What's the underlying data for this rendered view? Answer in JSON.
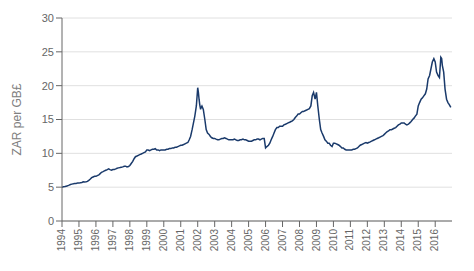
{
  "chart_data": {
    "type": "line",
    "ylabel": "ZAR per GB£",
    "color": "#1a3a6b",
    "grid": true,
    "xlim": [
      1994,
      2016.99
    ],
    "xticks": [
      1994,
      1995,
      1996,
      1997,
      1998,
      1999,
      2000,
      2001,
      2002,
      2003,
      2004,
      2005,
      2006,
      2007,
      2008,
      2009,
      2010,
      2011,
      2012,
      2013,
      2014,
      2015,
      2016
    ],
    "ylim": [
      0,
      30
    ],
    "yticks": [
      0,
      5,
      10,
      15,
      20,
      25,
      30
    ],
    "x": [
      1994.0,
      1994.08,
      1994.17,
      1994.25,
      1994.33,
      1994.42,
      1994.5,
      1994.58,
      1994.67,
      1994.75,
      1994.83,
      1994.92,
      1995.0,
      1995.08,
      1995.17,
      1995.25,
      1995.33,
      1995.42,
      1995.5,
      1995.58,
      1995.67,
      1995.75,
      1995.83,
      1995.92,
      1996.0,
      1996.08,
      1996.17,
      1996.25,
      1996.33,
      1996.42,
      1996.5,
      1996.58,
      1996.67,
      1996.75,
      1996.83,
      1996.92,
      1997.0,
      1997.08,
      1997.17,
      1997.25,
      1997.33,
      1997.42,
      1997.5,
      1997.58,
      1997.67,
      1997.75,
      1997.83,
      1997.92,
      1998.0,
      1998.08,
      1998.17,
      1998.25,
      1998.33,
      1998.42,
      1998.5,
      1998.58,
      1998.67,
      1998.75,
      1998.83,
      1998.92,
      1999.0,
      1999.08,
      1999.17,
      1999.25,
      1999.33,
      1999.42,
      1999.5,
      1999.58,
      1999.67,
      1999.75,
      1999.83,
      1999.92,
      2000.0,
      2000.08,
      2000.17,
      2000.25,
      2000.33,
      2000.42,
      2000.5,
      2000.58,
      2000.67,
      2000.75,
      2000.83,
      2000.92,
      2001.0,
      2001.08,
      2001.17,
      2001.25,
      2001.33,
      2001.42,
      2001.5,
      2001.58,
      2001.67,
      2001.75,
      2001.83,
      2001.92,
      2002.0,
      2002.04,
      2002.08,
      2002.12,
      2002.17,
      2002.21,
      2002.25,
      2002.33,
      2002.42,
      2002.5,
      2002.58,
      2002.67,
      2002.75,
      2002.83,
      2002.92,
      2003.0,
      2003.08,
      2003.17,
      2003.25,
      2003.33,
      2003.42,
      2003.5,
      2003.58,
      2003.67,
      2003.75,
      2003.83,
      2003.92,
      2004.0,
      2004.08,
      2004.17,
      2004.25,
      2004.33,
      2004.42,
      2004.5,
      2004.58,
      2004.67,
      2004.75,
      2004.83,
      2004.92,
      2005.0,
      2005.08,
      2005.17,
      2005.25,
      2005.33,
      2005.42,
      2005.5,
      2005.58,
      2005.67,
      2005.75,
      2005.83,
      2005.92,
      2006.0,
      2006.08,
      2006.17,
      2006.25,
      2006.33,
      2006.42,
      2006.5,
      2006.58,
      2006.67,
      2006.75,
      2006.83,
      2006.92,
      2007.0,
      2007.08,
      2007.17,
      2007.25,
      2007.33,
      2007.42,
      2007.5,
      2007.58,
      2007.67,
      2007.75,
      2007.83,
      2007.92,
      2008.0,
      2008.08,
      2008.17,
      2008.25,
      2008.33,
      2008.42,
      2008.5,
      2008.58,
      2008.67,
      2008.75,
      2008.83,
      2008.92,
      2009.0,
      2009.08,
      2009.17,
      2009.25,
      2009.33,
      2009.42,
      2009.5,
      2009.58,
      2009.67,
      2009.75,
      2009.83,
      2009.92,
      2010.0,
      2010.08,
      2010.17,
      2010.25,
      2010.33,
      2010.42,
      2010.5,
      2010.58,
      2010.67,
      2010.75,
      2010.83,
      2010.92,
      2011.0,
      2011.08,
      2011.17,
      2011.25,
      2011.33,
      2011.42,
      2011.5,
      2011.58,
      2011.67,
      2011.75,
      2011.83,
      2011.92,
      2012.0,
      2012.08,
      2012.17,
      2012.25,
      2012.33,
      2012.42,
      2012.5,
      2012.58,
      2012.67,
      2012.75,
      2012.83,
      2012.92,
      2013.0,
      2013.08,
      2013.17,
      2013.25,
      2013.33,
      2013.42,
      2013.5,
      2013.58,
      2013.67,
      2013.75,
      2013.83,
      2013.92,
      2014.0,
      2014.08,
      2014.17,
      2014.25,
      2014.33,
      2014.42,
      2014.5,
      2014.58,
      2014.67,
      2014.75,
      2014.83,
      2014.92,
      2015.0,
      2015.08,
      2015.17,
      2015.25,
      2015.33,
      2015.42,
      2015.5,
      2015.58,
      2015.67,
      2015.75,
      2015.83,
      2015.92,
      2016.0,
      2016.08,
      2016.17,
      2016.25,
      2016.33,
      2016.38,
      2016.42,
      2016.5,
      2016.58,
      2016.67,
      2016.75,
      2016.83,
      2016.92
    ],
    "values": [
      5.0,
      5.05,
      5.1,
      5.15,
      5.2,
      5.3,
      5.4,
      5.45,
      5.5,
      5.55,
      5.55,
      5.6,
      5.6,
      5.65,
      5.7,
      5.8,
      5.75,
      5.8,
      5.85,
      6.0,
      6.2,
      6.4,
      6.5,
      6.6,
      6.6,
      6.7,
      6.8,
      7.0,
      7.2,
      7.3,
      7.4,
      7.5,
      7.6,
      7.7,
      7.6,
      7.5,
      7.6,
      7.6,
      7.7,
      7.8,
      7.85,
      7.9,
      7.95,
      8.0,
      8.1,
      8.1,
      8.0,
      8.05,
      8.2,
      8.5,
      8.8,
      9.2,
      9.5,
      9.6,
      9.7,
      9.8,
      9.9,
      10.0,
      10.1,
      10.2,
      10.5,
      10.5,
      10.4,
      10.5,
      10.6,
      10.6,
      10.7,
      10.5,
      10.5,
      10.4,
      10.5,
      10.5,
      10.5,
      10.5,
      10.6,
      10.6,
      10.7,
      10.7,
      10.8,
      10.8,
      10.9,
      10.9,
      11.0,
      11.1,
      11.2,
      11.2,
      11.3,
      11.4,
      11.5,
      11.6,
      12.0,
      12.5,
      13.5,
      14.5,
      15.5,
      17.0,
      19.7,
      19.0,
      18.0,
      17.2,
      16.5,
      16.8,
      17.0,
      16.5,
      15.0,
      13.5,
      13.0,
      12.8,
      12.5,
      12.3,
      12.2,
      12.2,
      12.1,
      12.0,
      12.0,
      12.1,
      12.2,
      12.2,
      12.3,
      12.2,
      12.1,
      12.0,
      12.0,
      12.0,
      12.0,
      12.1,
      12.0,
      11.9,
      11.9,
      12.0,
      12.0,
      12.1,
      12.0,
      12.0,
      11.9,
      11.8,
      11.8,
      11.8,
      11.9,
      12.0,
      12.0,
      12.1,
      12.1,
      12.0,
      12.1,
      12.2,
      12.2,
      10.8,
      11.0,
      11.2,
      11.5,
      12.0,
      12.5,
      13.0,
      13.5,
      13.8,
      13.8,
      14.0,
      14.0,
      14.0,
      14.2,
      14.3,
      14.4,
      14.5,
      14.6,
      14.7,
      14.8,
      15.0,
      15.3,
      15.5,
      15.8,
      15.8,
      16.0,
      16.2,
      16.2,
      16.3,
      16.4,
      16.5,
      16.6,
      17.0,
      18.5,
      19.0,
      18.0,
      19.0,
      17.0,
      15.0,
      13.5,
      13.0,
      12.5,
      12.0,
      11.8,
      11.5,
      11.5,
      11.2,
      11.0,
      11.5,
      11.5,
      11.4,
      11.3,
      11.2,
      11.0,
      10.8,
      10.8,
      10.6,
      10.5,
      10.5,
      10.5,
      10.5,
      10.5,
      10.6,
      10.6,
      10.7,
      10.8,
      11.0,
      11.2,
      11.3,
      11.4,
      11.5,
      11.6,
      11.5,
      11.6,
      11.7,
      11.8,
      11.9,
      12.0,
      12.1,
      12.2,
      12.3,
      12.4,
      12.5,
      12.6,
      12.8,
      13.0,
      13.2,
      13.3,
      13.5,
      13.5,
      13.6,
      13.7,
      13.8,
      14.0,
      14.2,
      14.3,
      14.5,
      14.5,
      14.5,
      14.3,
      14.2,
      14.3,
      14.5,
      14.7,
      15.0,
      15.2,
      15.5,
      15.8,
      17.0,
      17.5,
      18.0,
      18.2,
      18.5,
      18.8,
      19.5,
      21.0,
      21.5,
      22.5,
      23.5,
      24.0,
      23.5,
      22.0,
      21.5,
      21.2,
      24.2,
      24.0,
      23.0,
      22.0,
      19.5,
      18.0,
      17.5,
      17.2,
      16.8
    ]
  }
}
